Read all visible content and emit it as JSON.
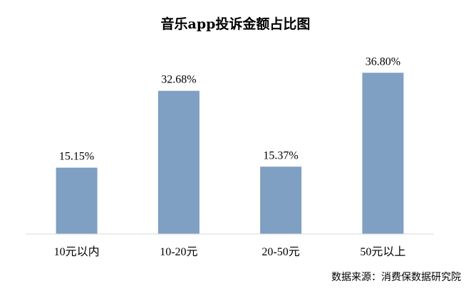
{
  "chart_data": {
    "type": "bar",
    "title": "音乐app投诉金额占比图",
    "categories": [
      "10元以内",
      "10-20元",
      "20-50元",
      "50元以上"
    ],
    "values": [
      15.15,
      32.68,
      15.37,
      36.8
    ],
    "value_labels": [
      "15.15%",
      "32.68%",
      "15.37%",
      "36.80%"
    ],
    "unit": "%",
    "xlabel": "",
    "ylabel": "",
    "ylim": [
      0,
      40
    ],
    "grid": false,
    "legend": "none",
    "bar_color": "#7f9fc3"
  },
  "source_note": "数据来源：消费保数据研究院"
}
